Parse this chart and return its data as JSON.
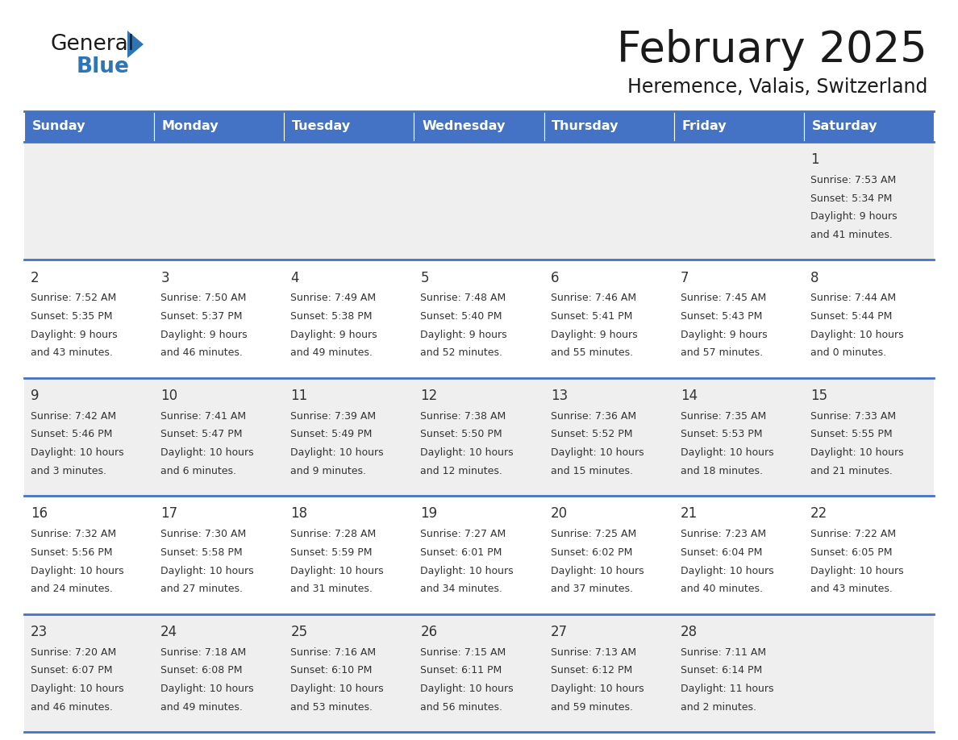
{
  "title": "February 2025",
  "subtitle": "Heremence, Valais, Switzerland",
  "header_bg": "#4472C4",
  "header_text": "#FFFFFF",
  "row_bg_light": "#EFEFEF",
  "row_bg_white": "#FFFFFF",
  "cell_border_color": "#4472C4",
  "day_number_color": "#333333",
  "info_text_color": "#333333",
  "days_of_week": [
    "Sunday",
    "Monday",
    "Tuesday",
    "Wednesday",
    "Thursday",
    "Friday",
    "Saturday"
  ],
  "logo_general_color": "#1a1a1a",
  "logo_blue_color": "#2E75B6",
  "calendar_data": [
    [
      null,
      null,
      null,
      null,
      null,
      null,
      {
        "day": 1,
        "sunrise": "7:53 AM",
        "sunset": "5:34 PM",
        "daylight": "9 hours",
        "daylight2": "and 41 minutes."
      }
    ],
    [
      {
        "day": 2,
        "sunrise": "7:52 AM",
        "sunset": "5:35 PM",
        "daylight": "9 hours",
        "daylight2": "and 43 minutes."
      },
      {
        "day": 3,
        "sunrise": "7:50 AM",
        "sunset": "5:37 PM",
        "daylight": "9 hours",
        "daylight2": "and 46 minutes."
      },
      {
        "day": 4,
        "sunrise": "7:49 AM",
        "sunset": "5:38 PM",
        "daylight": "9 hours",
        "daylight2": "and 49 minutes."
      },
      {
        "day": 5,
        "sunrise": "7:48 AM",
        "sunset": "5:40 PM",
        "daylight": "9 hours",
        "daylight2": "and 52 minutes."
      },
      {
        "day": 6,
        "sunrise": "7:46 AM",
        "sunset": "5:41 PM",
        "daylight": "9 hours",
        "daylight2": "and 55 minutes."
      },
      {
        "day": 7,
        "sunrise": "7:45 AM",
        "sunset": "5:43 PM",
        "daylight": "9 hours",
        "daylight2": "and 57 minutes."
      },
      {
        "day": 8,
        "sunrise": "7:44 AM",
        "sunset": "5:44 PM",
        "daylight": "10 hours",
        "daylight2": "and 0 minutes."
      }
    ],
    [
      {
        "day": 9,
        "sunrise": "7:42 AM",
        "sunset": "5:46 PM",
        "daylight": "10 hours",
        "daylight2": "and 3 minutes."
      },
      {
        "day": 10,
        "sunrise": "7:41 AM",
        "sunset": "5:47 PM",
        "daylight": "10 hours",
        "daylight2": "and 6 minutes."
      },
      {
        "day": 11,
        "sunrise": "7:39 AM",
        "sunset": "5:49 PM",
        "daylight": "10 hours",
        "daylight2": "and 9 minutes."
      },
      {
        "day": 12,
        "sunrise": "7:38 AM",
        "sunset": "5:50 PM",
        "daylight": "10 hours",
        "daylight2": "and 12 minutes."
      },
      {
        "day": 13,
        "sunrise": "7:36 AM",
        "sunset": "5:52 PM",
        "daylight": "10 hours",
        "daylight2": "and 15 minutes."
      },
      {
        "day": 14,
        "sunrise": "7:35 AM",
        "sunset": "5:53 PM",
        "daylight": "10 hours",
        "daylight2": "and 18 minutes."
      },
      {
        "day": 15,
        "sunrise": "7:33 AM",
        "sunset": "5:55 PM",
        "daylight": "10 hours",
        "daylight2": "and 21 minutes."
      }
    ],
    [
      {
        "day": 16,
        "sunrise": "7:32 AM",
        "sunset": "5:56 PM",
        "daylight": "10 hours",
        "daylight2": "and 24 minutes."
      },
      {
        "day": 17,
        "sunrise": "7:30 AM",
        "sunset": "5:58 PM",
        "daylight": "10 hours",
        "daylight2": "and 27 minutes."
      },
      {
        "day": 18,
        "sunrise": "7:28 AM",
        "sunset": "5:59 PM",
        "daylight": "10 hours",
        "daylight2": "and 31 minutes."
      },
      {
        "day": 19,
        "sunrise": "7:27 AM",
        "sunset": "6:01 PM",
        "daylight": "10 hours",
        "daylight2": "and 34 minutes."
      },
      {
        "day": 20,
        "sunrise": "7:25 AM",
        "sunset": "6:02 PM",
        "daylight": "10 hours",
        "daylight2": "and 37 minutes."
      },
      {
        "day": 21,
        "sunrise": "7:23 AM",
        "sunset": "6:04 PM",
        "daylight": "10 hours",
        "daylight2": "and 40 minutes."
      },
      {
        "day": 22,
        "sunrise": "7:22 AM",
        "sunset": "6:05 PM",
        "daylight": "10 hours",
        "daylight2": "and 43 minutes."
      }
    ],
    [
      {
        "day": 23,
        "sunrise": "7:20 AM",
        "sunset": "6:07 PM",
        "daylight": "10 hours",
        "daylight2": "and 46 minutes."
      },
      {
        "day": 24,
        "sunrise": "7:18 AM",
        "sunset": "6:08 PM",
        "daylight": "10 hours",
        "daylight2": "and 49 minutes."
      },
      {
        "day": 25,
        "sunrise": "7:16 AM",
        "sunset": "6:10 PM",
        "daylight": "10 hours",
        "daylight2": "and 53 minutes."
      },
      {
        "day": 26,
        "sunrise": "7:15 AM",
        "sunset": "6:11 PM",
        "daylight": "10 hours",
        "daylight2": "and 56 minutes."
      },
      {
        "day": 27,
        "sunrise": "7:13 AM",
        "sunset": "6:12 PM",
        "daylight": "10 hours",
        "daylight2": "and 59 minutes."
      },
      {
        "day": 28,
        "sunrise": "7:11 AM",
        "sunset": "6:14 PM",
        "daylight": "11 hours",
        "daylight2": "and 2 minutes."
      },
      null
    ]
  ]
}
